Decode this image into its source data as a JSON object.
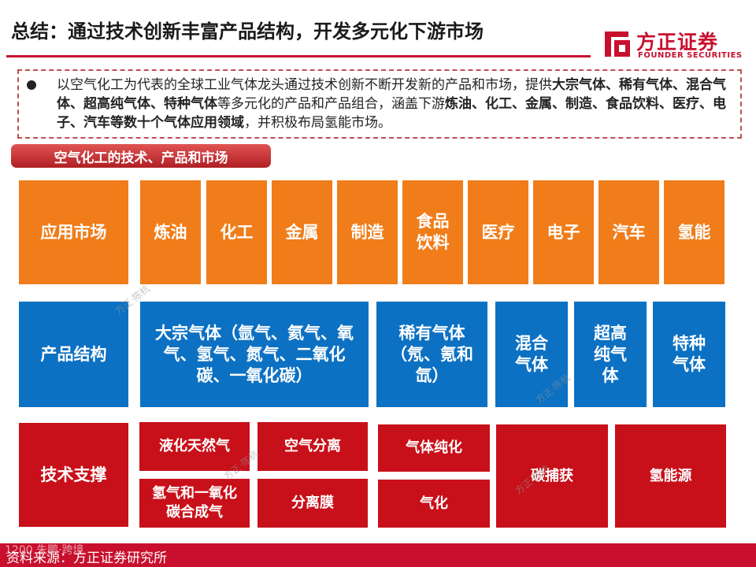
{
  "header": {
    "title": "总结：通过技术创新丰富产品结构，开发多元化下游市场",
    "logo_cn": "方正证券",
    "logo_en": "FOUNDER SECURITIES"
  },
  "summary": {
    "p1": "以空气化工为代表的全球工业气体龙头通过技术创新不断开发新的产品和市场，提供",
    "b1": "大宗气体、稀有气体、混合气体、超高纯气体、特种气体",
    "p2": "等多元化的产品和产品组合，涵盖下游",
    "b2": "炼油、化工、金属、制造、食品饮料、医疗、电子、汽车等数十个气体应用领域",
    "p3": "，并积极布局氢能市场。"
  },
  "section_label": "空气化工的技术、产品和市场",
  "market": {
    "header": "应用市场",
    "items": [
      "炼油",
      "化工",
      "金属",
      "制造",
      "食品饮料",
      "医疗",
      "电子",
      "汽车",
      "氢能"
    ]
  },
  "products": {
    "header": "产品结构",
    "items": [
      "大宗气体（氩气、氦气、氧气、氢气、氮气、二氧化碳、一氧化碳）",
      "稀有气体（氖、氪和氙）",
      "混合气体",
      "超高纯气体",
      "特种气体"
    ]
  },
  "tech": {
    "header": "技术支撑",
    "items": [
      "液化天然气",
      "空气分离",
      "气体纯化",
      "碳捕获",
      "氢能源",
      "氢气和一氧化碳合成气",
      "分离膜",
      "气化"
    ]
  },
  "watermarks": [
    "方正·陈杭",
    "方正·陈杭",
    "方正·陈杭",
    "方正·陈杭"
  ],
  "footer": {
    "source": "资料来源：方正证券研究所",
    "watermark": "1200 朱鹏·跨境"
  },
  "colors": {
    "market": "#f07d1a",
    "products": "#0c71c3",
    "tech": "#c8101a",
    "accent": "#c8102e"
  }
}
